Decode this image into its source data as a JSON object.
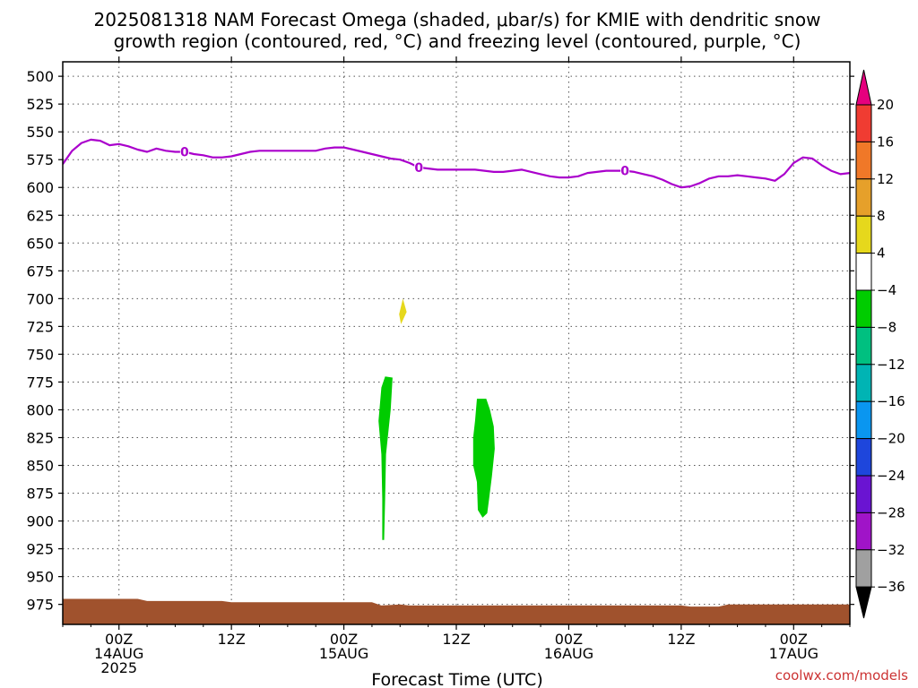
{
  "title_line1": "2025081318 NAM Forecast Omega (shaded, μbar/s) for KMIE with dendritic snow",
  "title_line2": "growth region (contoured, red, °C) and freezing level (contoured, purple, °C)",
  "credit": "coolwx.com/models",
  "credit_color": "#cc3333",
  "chart_data": {
    "type": "heatmap",
    "xlabel": "Forecast Time (UTC)",
    "x_range_hours": [
      0,
      84
    ],
    "x_ticks": [
      {
        "hour": 6,
        "lines": [
          "00Z",
          "14AUG",
          "2025"
        ]
      },
      {
        "hour": 18,
        "lines": [
          "12Z"
        ]
      },
      {
        "hour": 30,
        "lines": [
          "00Z",
          "15AUG"
        ]
      },
      {
        "hour": 42,
        "lines": [
          "12Z"
        ]
      },
      {
        "hour": 54,
        "lines": [
          "00Z",
          "16AUG"
        ]
      },
      {
        "hour": 66,
        "lines": [
          "12Z"
        ]
      },
      {
        "hour": 78,
        "lines": [
          "00Z",
          "17AUG"
        ]
      }
    ],
    "y_axis": "pressure (mb)",
    "y_range": [
      487,
      993
    ],
    "y_ticks": [
      500,
      525,
      550,
      575,
      600,
      625,
      650,
      675,
      700,
      725,
      750,
      775,
      800,
      825,
      850,
      875,
      900,
      925,
      950,
      975
    ],
    "grid": true,
    "freezing_level": {
      "label": "0",
      "color": "#aa00cc",
      "label_hours": [
        13,
        38,
        60
      ],
      "points": [
        [
          0,
          579
        ],
        [
          1,
          567
        ],
        [
          2,
          560
        ],
        [
          3,
          557
        ],
        [
          4,
          558
        ],
        [
          5,
          562
        ],
        [
          6,
          561
        ],
        [
          7,
          563
        ],
        [
          8,
          566
        ],
        [
          9,
          568
        ],
        [
          10,
          565
        ],
        [
          11,
          567
        ],
        [
          12,
          568
        ],
        [
          13,
          568
        ],
        [
          14,
          570
        ],
        [
          15,
          571
        ],
        [
          16,
          573
        ],
        [
          17,
          573
        ],
        [
          18,
          572
        ],
        [
          19,
          570
        ],
        [
          20,
          568
        ],
        [
          21,
          567
        ],
        [
          22,
          567
        ],
        [
          23,
          567
        ],
        [
          24,
          567
        ],
        [
          25,
          567
        ],
        [
          26,
          567
        ],
        [
          27,
          567
        ],
        [
          28,
          565
        ],
        [
          29,
          564
        ],
        [
          30,
          564
        ],
        [
          31,
          566
        ],
        [
          32,
          568
        ],
        [
          33,
          570
        ],
        [
          34,
          572
        ],
        [
          35,
          574
        ],
        [
          36,
          575
        ],
        [
          37,
          578
        ],
        [
          38,
          582
        ],
        [
          39,
          583
        ],
        [
          40,
          584
        ],
        [
          41,
          584
        ],
        [
          42,
          584
        ],
        [
          43,
          584
        ],
        [
          44,
          584
        ],
        [
          45,
          585
        ],
        [
          46,
          586
        ],
        [
          47,
          586
        ],
        [
          48,
          585
        ],
        [
          49,
          584
        ],
        [
          50,
          586
        ],
        [
          51,
          588
        ],
        [
          52,
          590
        ],
        [
          53,
          591
        ],
        [
          54,
          591
        ],
        [
          55,
          590
        ],
        [
          56,
          587
        ],
        [
          57,
          586
        ],
        [
          58,
          585
        ],
        [
          59,
          585
        ],
        [
          60,
          585
        ],
        [
          61,
          586
        ],
        [
          62,
          588
        ],
        [
          63,
          590
        ],
        [
          64,
          593
        ],
        [
          65,
          597
        ],
        [
          66,
          600
        ],
        [
          67,
          599
        ],
        [
          68,
          596
        ],
        [
          69,
          592
        ],
        [
          70,
          590
        ],
        [
          71,
          590
        ],
        [
          72,
          589
        ],
        [
          73,
          590
        ],
        [
          74,
          591
        ],
        [
          75,
          592
        ],
        [
          76,
          594
        ],
        [
          77,
          588
        ],
        [
          78,
          578
        ],
        [
          79,
          573
        ],
        [
          80,
          574
        ],
        [
          81,
          580
        ],
        [
          82,
          585
        ],
        [
          83,
          588
        ],
        [
          84,
          587
        ]
      ]
    },
    "omega_shading": [
      {
        "range": "4 to 8",
        "color": "#e6d81c",
        "shape": [
          [
            36.3,
            700
          ],
          [
            36.7,
            712
          ],
          [
            36.1,
            723
          ],
          [
            35.9,
            714
          ]
        ]
      },
      {
        "range": "-8 to -4",
        "color": "#00cc00",
        "shape": [
          [
            34.4,
            770
          ],
          [
            35.2,
            771
          ],
          [
            35.0,
            800
          ],
          [
            34.5,
            840
          ],
          [
            34.4,
            880
          ],
          [
            34.3,
            917
          ],
          [
            34.1,
            917
          ],
          [
            34.1,
            880
          ],
          [
            34.0,
            840
          ],
          [
            33.7,
            810
          ],
          [
            34.0,
            780
          ]
        ]
      },
      {
        "range": "-8 to -4",
        "color": "#00cc00",
        "shape": [
          [
            44.2,
            790
          ],
          [
            45.2,
            790
          ],
          [
            45.6,
            800
          ],
          [
            46.0,
            815
          ],
          [
            46.1,
            835
          ],
          [
            45.8,
            860
          ],
          [
            45.5,
            880
          ],
          [
            45.3,
            893
          ],
          [
            44.8,
            897
          ],
          [
            44.3,
            890
          ],
          [
            44.2,
            865
          ],
          [
            43.8,
            850
          ],
          [
            43.8,
            825
          ],
          [
            44.0,
            810
          ]
        ]
      }
    ],
    "terrain": {
      "color": "#a0522d",
      "surface": [
        [
          0,
          970
        ],
        [
          8,
          970
        ],
        [
          9,
          972
        ],
        [
          17,
          972
        ],
        [
          18,
          973
        ],
        [
          33,
          973
        ],
        [
          34,
          976
        ],
        [
          36,
          975
        ],
        [
          37,
          976
        ],
        [
          40,
          976
        ],
        [
          66,
          976
        ],
        [
          67,
          977
        ],
        [
          70,
          977
        ],
        [
          71,
          975
        ],
        [
          84,
          975
        ]
      ]
    },
    "colorbar": {
      "ticks": [
        20,
        16,
        12,
        8,
        4,
        -4,
        -8,
        -12,
        -16,
        -20,
        -24,
        -28,
        -32,
        -36
      ],
      "bands": [
        {
          "from": 20,
          "to": 999,
          "color": "#e6007e"
        },
        {
          "from": 16,
          "to": 20,
          "color": "#f03c32"
        },
        {
          "from": 12,
          "to": 16,
          "color": "#f07828"
        },
        {
          "from": 8,
          "to": 12,
          "color": "#e6a02a"
        },
        {
          "from": 4,
          "to": 8,
          "color": "#e6d81c"
        },
        {
          "from": -4,
          "to": 4,
          "color": "#ffffff"
        },
        {
          "from": -8,
          "to": -4,
          "color": "#00cc00"
        },
        {
          "from": -12,
          "to": -8,
          "color": "#00c080"
        },
        {
          "from": -16,
          "to": -12,
          "color": "#00b4b4"
        },
        {
          "from": -20,
          "to": -16,
          "color": "#0a96f0"
        },
        {
          "from": -24,
          "to": -20,
          "color": "#1e46dc"
        },
        {
          "from": -28,
          "to": -24,
          "color": "#6a14d2"
        },
        {
          "from": -32,
          "to": -28,
          "color": "#a014c8"
        },
        {
          "from": -36,
          "to": -32,
          "color": "#a0a0a0"
        },
        {
          "from": -999,
          "to": -36,
          "color": "#000000"
        }
      ]
    }
  }
}
